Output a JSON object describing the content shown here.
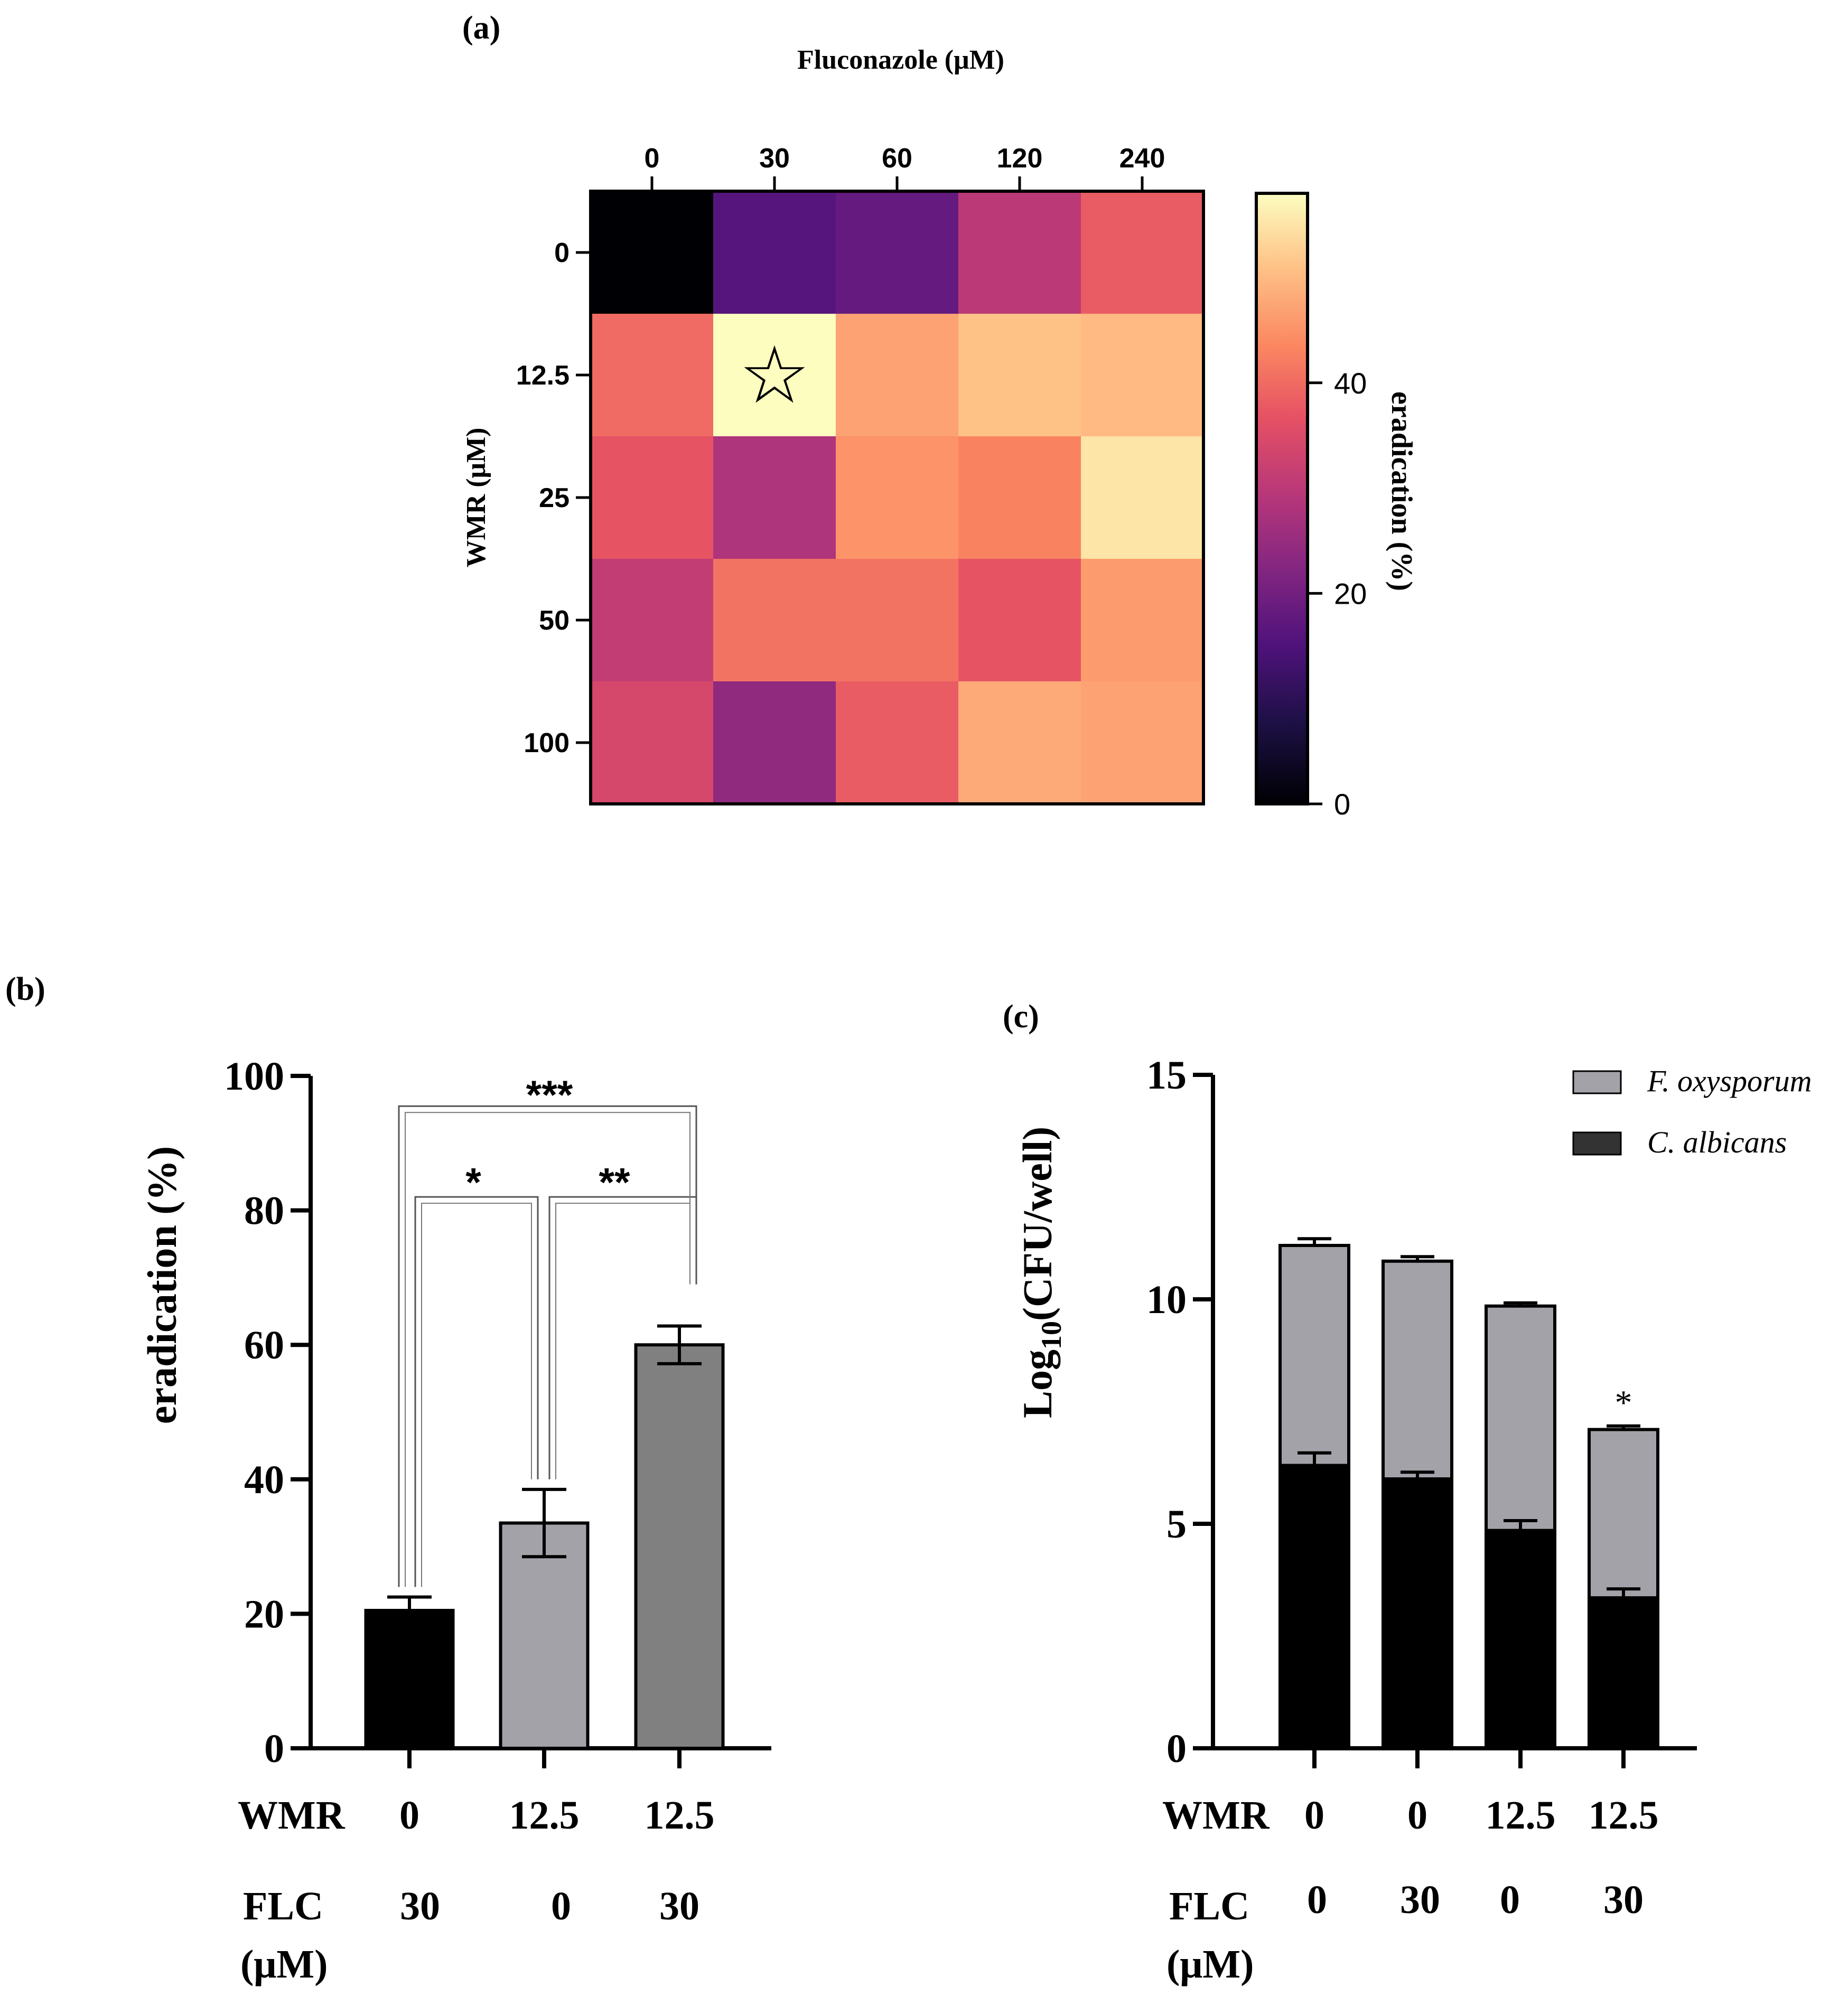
{
  "chart_data": [
    {
      "panel": "(a)",
      "type": "heatmap",
      "title": "Fluconazole (μM)",
      "xlabel": "Fluconazole (μM)",
      "ylabel": "WMR (μM)",
      "x_categories": [
        "0",
        "30",
        "60",
        "120",
        "240"
      ],
      "y_categories": [
        "0",
        "12.5",
        "25",
        "50",
        "100"
      ],
      "values": [
        [
          0,
          16,
          18,
          30,
          38
        ],
        [
          40,
          58,
          47,
          51,
          50
        ],
        [
          37,
          28,
          45,
          43,
          55
        ],
        [
          31,
          41,
          41,
          37,
          46
        ],
        [
          34,
          24,
          38,
          48,
          47
        ]
      ],
      "highlight": {
        "row": 1,
        "col": 1,
        "symbol": "☆"
      },
      "colorbar": {
        "label": "eradication (%)",
        "range": [
          0,
          58
        ],
        "ticks": [
          "0",
          "20",
          "40"
        ],
        "tick_values": [
          0,
          20,
          40
        ]
      }
    },
    {
      "panel": "(b)",
      "type": "bar",
      "ylabel": "eradication (%)",
      "ylim": [
        0,
        100
      ],
      "yticks": [
        "0",
        "20",
        "40",
        "60",
        "80",
        "100"
      ],
      "categories": [
        {
          "wmr": "0",
          "flc": "30"
        },
        {
          "wmr": "12.5",
          "flc": "0"
        },
        {
          "wmr": "12.5",
          "flc": "30"
        }
      ],
      "values": [
        20.5,
        33.5,
        60
      ],
      "errors": [
        2,
        5,
        2.8
      ],
      "colors": [
        "#000000",
        "#a2a2a8",
        "#808080"
      ],
      "row_labels": {
        "wmr": "WMR",
        "flc": "FLC",
        "unit": "(μM)"
      },
      "significance": [
        {
          "from": 0,
          "to": 1,
          "label": "*"
        },
        {
          "from": 1,
          "to": 2,
          "label": "**"
        },
        {
          "from": 0,
          "to": 2,
          "label": "***"
        }
      ]
    },
    {
      "panel": "(c)",
      "type": "bar",
      "stacked": true,
      "ylabel": "Log10(CFU/well)",
      "ylabel_parts": {
        "main": "Log",
        "sub": "10",
        "rest": "(CFU/well)"
      },
      "ylim": [
        0,
        15
      ],
      "yticks": [
        "0",
        "5",
        "10",
        "15"
      ],
      "categories": [
        {
          "wmr": "0",
          "flc": "0"
        },
        {
          "wmr": "0",
          "flc": "30"
        },
        {
          "wmr": "12.5",
          "flc": "0"
        },
        {
          "wmr": "12.5",
          "flc": "30"
        }
      ],
      "series": [
        {
          "name": "C. albicans",
          "values": [
            6.3,
            6.0,
            4.85,
            3.35
          ],
          "errors": [
            0.28,
            0.15,
            0.22,
            0.2
          ],
          "color": "#000000",
          "legend_color": "#333333"
        },
        {
          "name": "F. oxysporum",
          "total": [
            11.2,
            10.85,
            9.85,
            7.1
          ],
          "errors": [
            0.15,
            0.1,
            0.07,
            0.08
          ],
          "color": "#a2a2a8"
        }
      ],
      "annotations": [
        {
          "index": 3,
          "label": "*"
        }
      ],
      "row_labels": {
        "wmr": "WMR",
        "flc": "FLC",
        "unit": "(μM)"
      }
    }
  ]
}
